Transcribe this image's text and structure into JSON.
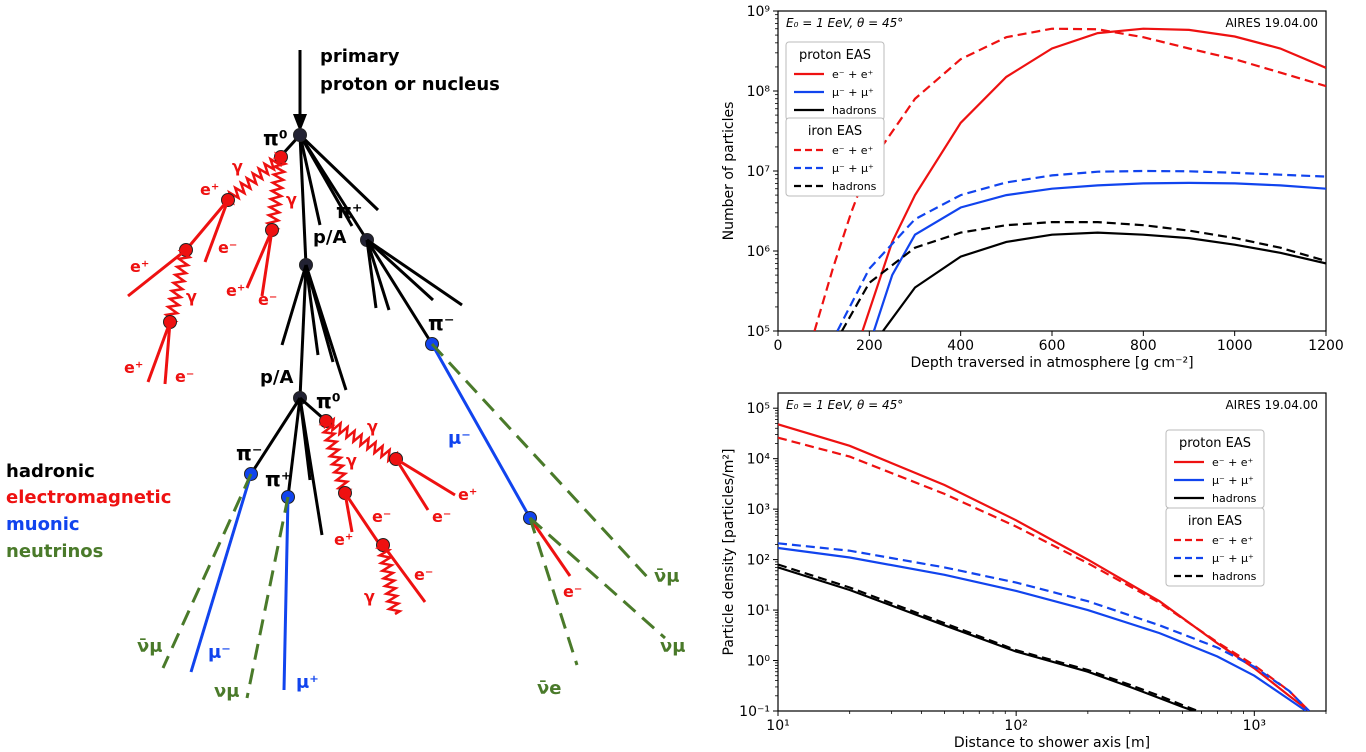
{
  "diagram": {
    "title_line1": "primary",
    "title_line2": "proton or nucleus",
    "legend": {
      "hadronic": "hadronic",
      "electromagnetic": "electromagnetic",
      "muonic": "muonic",
      "neutrinos": "neutrinos"
    },
    "colors": {
      "hadronic": "#000000",
      "electromagnetic": "#ee1111",
      "muonic": "#1144ee",
      "neutrinos": "#4a7a2a"
    },
    "labels": {
      "pi0_top": "π⁰",
      "pi_plus_top": "π⁺",
      "pA_1": "p/A",
      "pA_2": "p/A",
      "pi0_mid": "π⁰",
      "pi_minus_right": "π⁻",
      "mu_minus_right": "μ⁻",
      "pi_minus_left": "π⁻",
      "pi_plus_left": "π⁺",
      "gamma": "γ",
      "e_plus": "e⁺",
      "e_minus": "e⁻",
      "nubar_mu": "ν̄μ",
      "nu_mu": "νμ",
      "nubar_e": "ν̄e",
      "mu_minus": "μ⁻",
      "mu_plus": "μ⁺"
    }
  },
  "chart_data": [
    {
      "type": "line",
      "annotation_left": "E₀ = 1 EeV, θ = 45°",
      "annotation_right": "AIRES 19.04.00",
      "xlabel": "Depth traversed in atmosphere [g cm⁻²]",
      "ylabel": "Number of particles",
      "xlim": [
        0,
        1200
      ],
      "ylim": [
        100000,
        1000000000
      ],
      "yscale": "log",
      "xticks": [
        "0",
        "200",
        "400",
        "600",
        "800",
        "1000",
        "1200"
      ],
      "yticks": [
        "10⁵",
        "10⁶",
        "10⁷",
        "10⁸",
        "10⁹"
      ],
      "legend_groups": [
        {
          "title": "proton EAS",
          "entries": [
            "e⁻ + e⁺",
            "μ⁻ + μ⁺",
            "hadrons"
          ]
        },
        {
          "title": "iron EAS",
          "entries": [
            "e⁻ + e⁺",
            "μ⁻ + μ⁺",
            "hadrons"
          ]
        }
      ],
      "series": [
        {
          "name": "proton EAS e⁻ + e⁺",
          "color": "#ee1111",
          "dash": "solid",
          "x": [
            185,
            250,
            300,
            400,
            500,
            600,
            700,
            800,
            900,
            1000,
            1100,
            1200
          ],
          "y": [
            100000.0,
            1300000.0,
            5000000.0,
            40000000.0,
            150000000.0,
            340000000.0,
            530000000.0,
            600000000.0,
            580000000.0,
            480000000.0,
            340000000.0,
            195000000.0
          ]
        },
        {
          "name": "proton EAS μ⁻ + μ⁺",
          "color": "#1144ee",
          "dash": "solid",
          "x": [
            210,
            250,
            300,
            400,
            500,
            600,
            700,
            800,
            900,
            1000,
            1100,
            1200
          ],
          "y": [
            100000.0,
            500000.0,
            1600000.0,
            3500000.0,
            5000000.0,
            6000000.0,
            6600000.0,
            7000000.0,
            7100000.0,
            7000000.0,
            6600000.0,
            6000000.0
          ]
        },
        {
          "name": "proton EAS hadrons",
          "color": "#000000",
          "dash": "solid",
          "x": [
            230,
            300,
            400,
            500,
            600,
            700,
            800,
            900,
            1000,
            1100,
            1200
          ],
          "y": [
            100000.0,
            350000.0,
            850000.0,
            1300000.0,
            1600000.0,
            1700000.0,
            1600000.0,
            1450000.0,
            1200000.0,
            950000.0,
            700000.0
          ]
        },
        {
          "name": "iron EAS e⁻ + e⁺",
          "color": "#ee1111",
          "dash": "dashed",
          "x": [
            80,
            120,
            160,
            200,
            300,
            400,
            500,
            600,
            700,
            800,
            900,
            1000,
            1100,
            1200
          ],
          "y": [
            100000.0,
            600000.0,
            3000000.0,
            12000000.0,
            80000000.0,
            250000000.0,
            470000000.0,
            600000000.0,
            590000000.0,
            470000000.0,
            340000000.0,
            250000000.0,
            170000000.0,
            115000000.0
          ]
        },
        {
          "name": "iron EAS μ⁻ + μ⁺",
          "color": "#1144ee",
          "dash": "dashed",
          "x": [
            130,
            200,
            300,
            400,
            500,
            600,
            700,
            800,
            900,
            1000,
            1100,
            1200
          ],
          "y": [
            100000.0,
            600000.0,
            2500000.0,
            5000000.0,
            7200000.0,
            8800000.0,
            9800000.0,
            10000000.0,
            9900000.0,
            9500000.0,
            9000000.0,
            8500000.0
          ]
        },
        {
          "name": "iron EAS hadrons",
          "color": "#000000",
          "dash": "dashed",
          "x": [
            140,
            200,
            300,
            400,
            500,
            600,
            700,
            800,
            900,
            1000,
            1100,
            1200
          ],
          "y": [
            100000.0,
            400000.0,
            1100000.0,
            1700000.0,
            2100000.0,
            2300000.0,
            2300000.0,
            2100000.0,
            1800000.0,
            1450000.0,
            1100000.0,
            750000.0
          ]
        }
      ]
    },
    {
      "type": "line",
      "annotation_left": "E₀ = 1 EeV, θ = 45°",
      "annotation_right": "AIRES 19.04.00",
      "xlabel": "Distance to shower axis [m]",
      "ylabel": "Particle density [particles/m²]",
      "xlim": [
        10,
        2000
      ],
      "ylim": [
        0.1,
        200000
      ],
      "xscale": "log",
      "yscale": "log",
      "xticks": [
        "10¹",
        "10²",
        "10³"
      ],
      "yticks": [
        "10⁻¹",
        "10⁰",
        "10¹",
        "10²",
        "10³",
        "10⁴",
        "10⁵"
      ],
      "legend_groups": [
        {
          "title": "proton EAS",
          "entries": [
            "e⁻ + e⁺",
            "μ⁻ + μ⁺",
            "hadrons"
          ]
        },
        {
          "title": "iron EAS",
          "entries": [
            "e⁻ + e⁺",
            "μ⁻ + μ⁺",
            "hadrons"
          ]
        }
      ],
      "series": [
        {
          "name": "proton EAS e⁻ + e⁺",
          "color": "#ee1111",
          "dash": "solid",
          "x": [
            10,
            20,
            50,
            100,
            200,
            400,
            700,
            1000,
            1400,
            1700
          ],
          "y": [
            48000,
            18000,
            3000,
            600,
            100,
            15,
            2.2,
            0.7,
            0.2,
            0.1
          ]
        },
        {
          "name": "proton EAS μ⁻ + μ⁺",
          "color": "#1144ee",
          "dash": "solid",
          "x": [
            10,
            20,
            50,
            100,
            200,
            400,
            700,
            1000,
            1400,
            1650
          ],
          "y": [
            170,
            110,
            50,
            24,
            10,
            3.5,
            1.2,
            0.5,
            0.17,
            0.1
          ]
        },
        {
          "name": "proton EAS hadrons",
          "color": "#000000",
          "dash": "solid",
          "x": [
            10,
            20,
            50,
            100,
            200,
            300,
            400,
            500,
            560
          ],
          "y": [
            70,
            25,
            5,
            1.5,
            0.6,
            0.3,
            0.18,
            0.12,
            0.1
          ]
        },
        {
          "name": "iron EAS e⁻ + e⁺",
          "color": "#ee1111",
          "dash": "dashed",
          "x": [
            10,
            20,
            50,
            100,
            200,
            400,
            700,
            1000,
            1400,
            1700
          ],
          "y": [
            26000,
            11000,
            2000,
            450,
            85,
            14,
            2.3,
            0.8,
            0.25,
            0.1
          ]
        },
        {
          "name": "iron EAS μ⁻ + μ⁺",
          "color": "#1144ee",
          "dash": "dashed",
          "x": [
            10,
            20,
            50,
            100,
            200,
            400,
            700,
            1000,
            1400,
            1700
          ],
          "y": [
            210,
            150,
            70,
            35,
            15,
            5,
            1.8,
            0.75,
            0.25,
            0.1
          ]
        },
        {
          "name": "iron EAS hadrons",
          "color": "#000000",
          "dash": "dashed",
          "x": [
            10,
            20,
            50,
            100,
            200,
            300,
            400,
            500,
            580
          ],
          "y": [
            80,
            28,
            5.5,
            1.6,
            0.65,
            0.33,
            0.2,
            0.13,
            0.1
          ]
        }
      ]
    }
  ]
}
